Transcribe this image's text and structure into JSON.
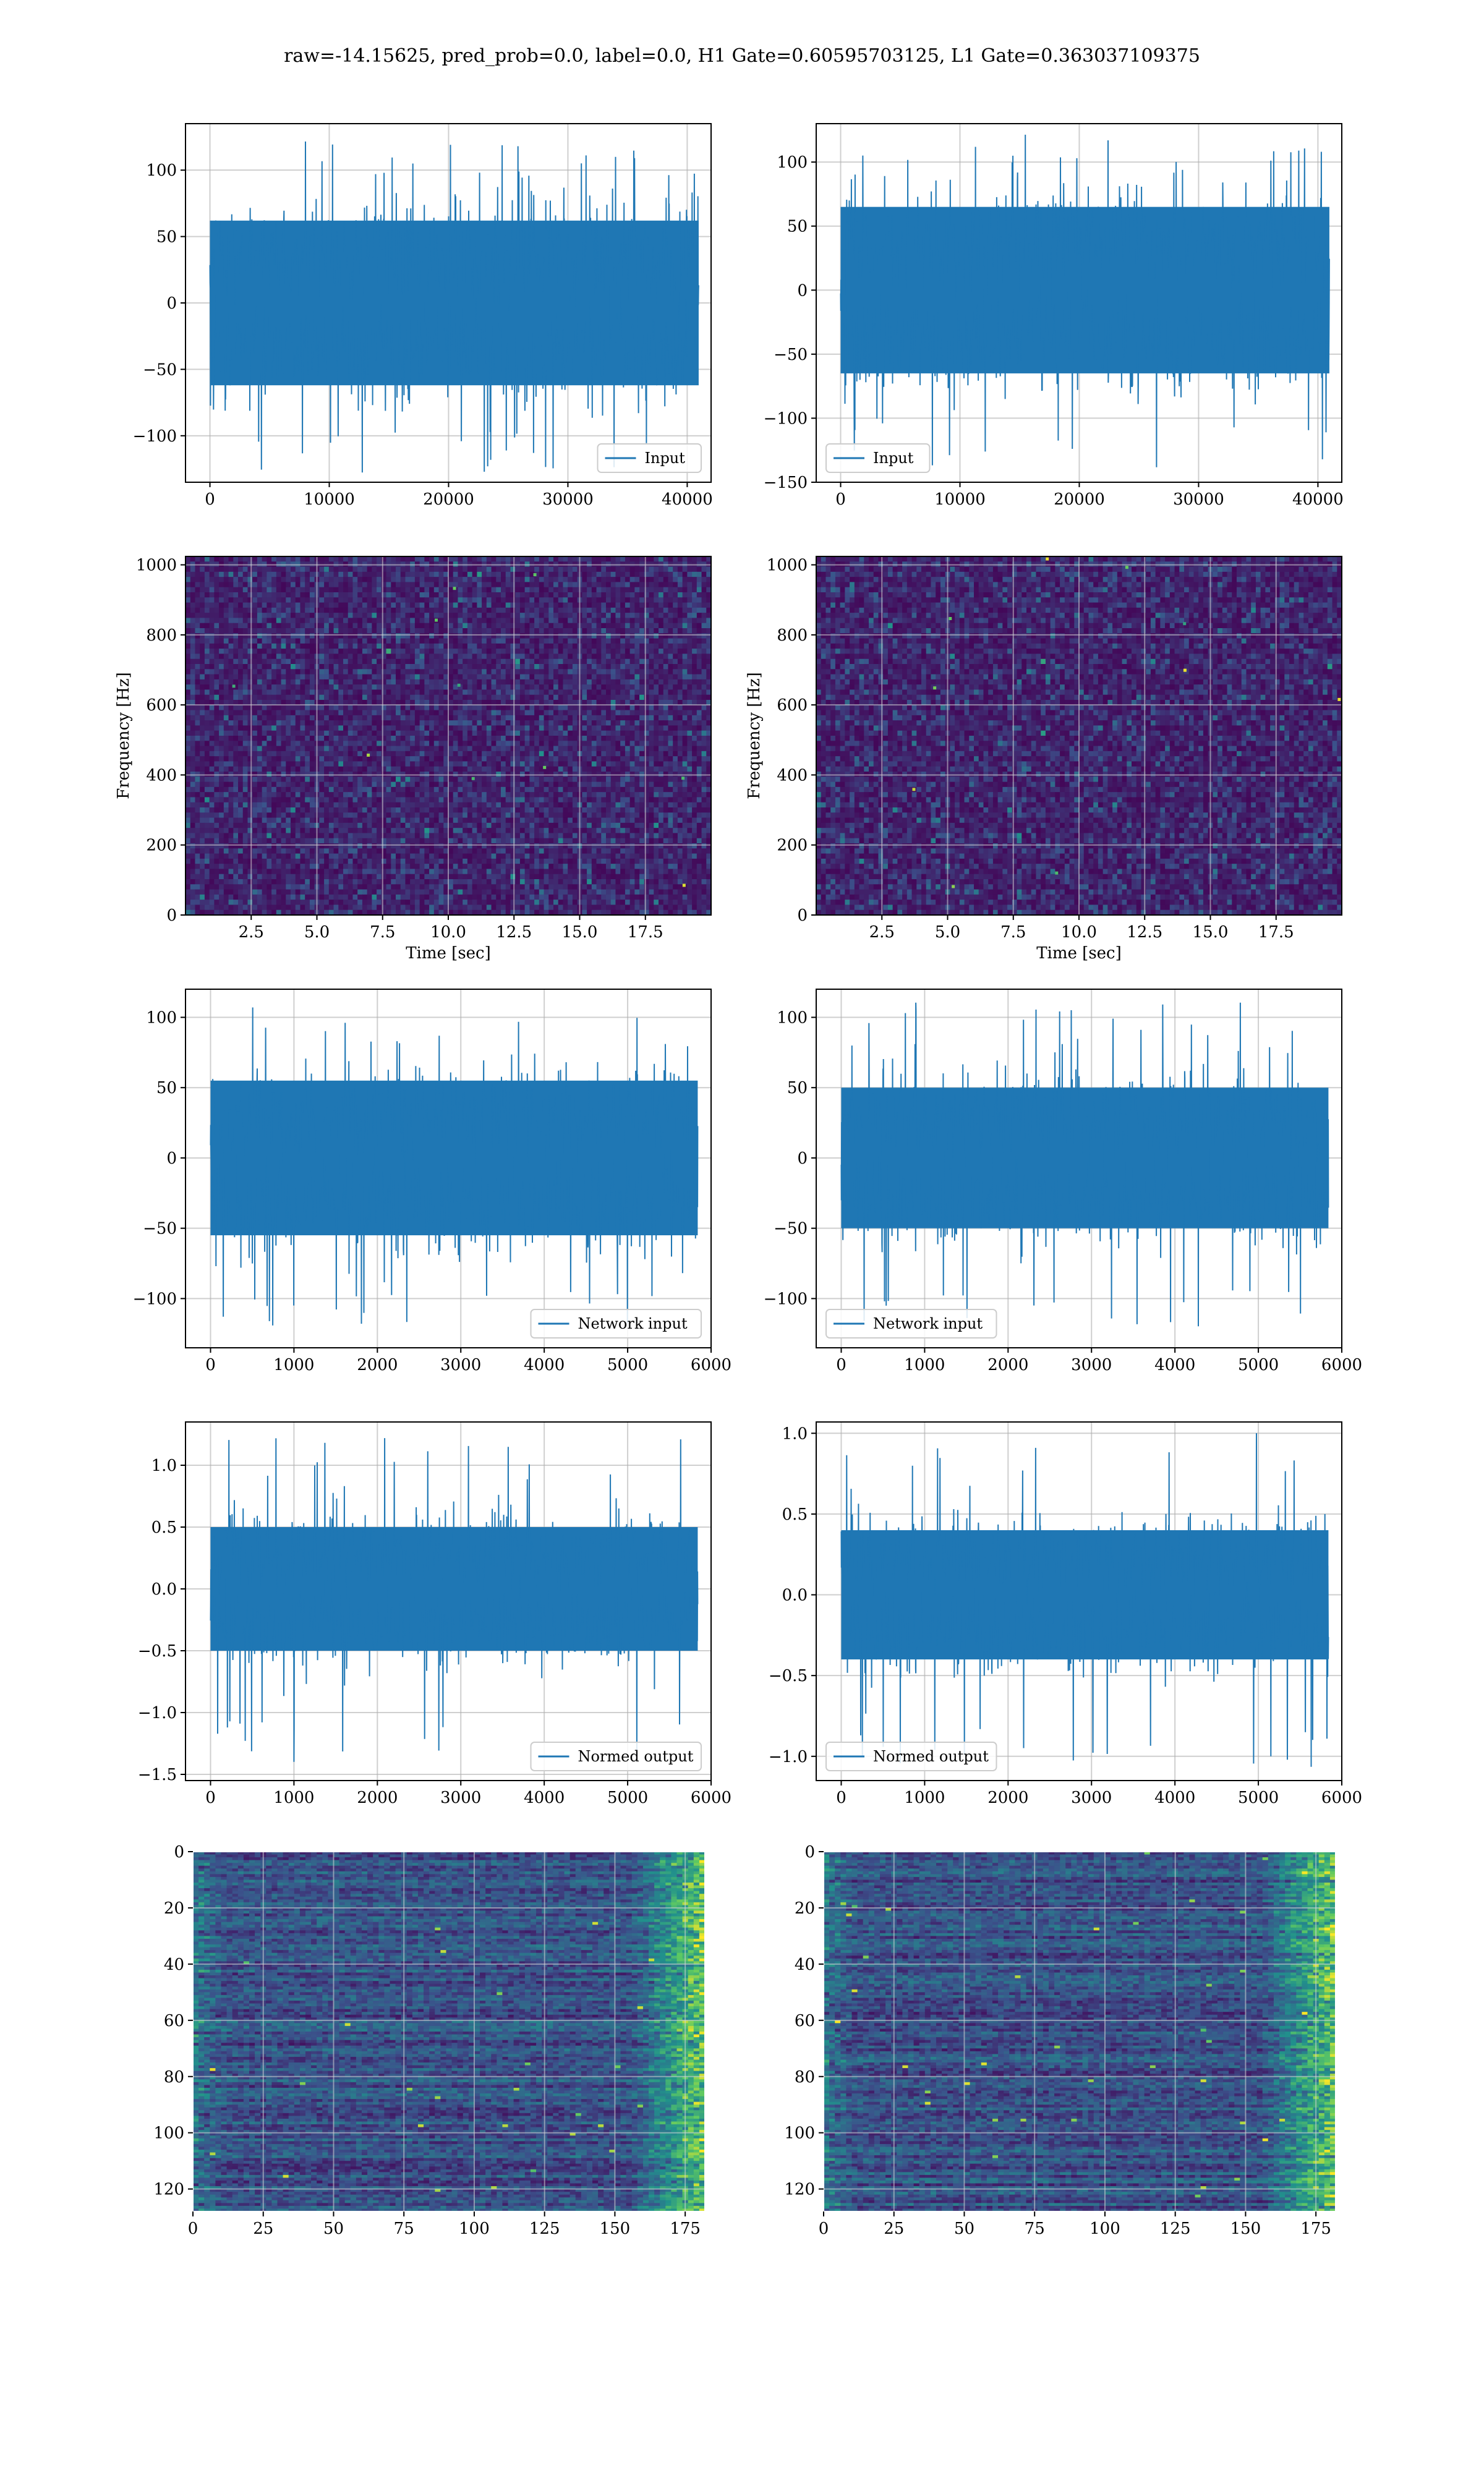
{
  "suptitle": "raw=-14.15625, pred_prob=0.0, label=0.0, H1 Gate=0.60595703125, L1 Gate=0.363037109375",
  "colors": {
    "series": "#1f77b4",
    "grid": "#b0b0b0",
    "spine": "#000000",
    "viridis_dark": "#440154",
    "viridis_mid": "#21918c",
    "viridis_light": "#fde725"
  },
  "chart_data": [
    {
      "id": "h1-input",
      "type": "line",
      "legend": "Input",
      "legend_loc": "lower right",
      "x_range": [
        0,
        40960
      ],
      "xlim": [
        -2048,
        42000
      ],
      "ylim": [
        -135,
        135
      ],
      "xticks": [
        0,
        10000,
        20000,
        30000,
        40000
      ],
      "xtick_labels": [
        "0",
        "10000",
        "20000",
        "30000",
        "40000"
      ],
      "yticks": [
        -100,
        -50,
        0,
        50,
        100
      ],
      "ytick_labels": [
        "−100",
        "−50",
        "0",
        "50",
        "100"
      ],
      "envelope": {
        "core": [
          -62,
          62
        ],
        "peak": [
          -128,
          122
        ]
      },
      "grid": true
    },
    {
      "id": "l1-input",
      "type": "line",
      "legend": "Input",
      "legend_loc": "lower left",
      "x_range": [
        0,
        40960
      ],
      "xlim": [
        -2048,
        42000
      ],
      "ylim": [
        -150,
        130
      ],
      "xticks": [
        0,
        10000,
        20000,
        30000,
        40000
      ],
      "xtick_labels": [
        "0",
        "10000",
        "20000",
        "30000",
        "40000"
      ],
      "yticks": [
        -150,
        -100,
        -50,
        0,
        50,
        100
      ],
      "ytick_labels": [
        "−150",
        "−100",
        "−50",
        "0",
        "50",
        "100"
      ],
      "envelope": {
        "core": [
          -65,
          65
        ],
        "peak": [
          -140,
          122
        ]
      },
      "grid": true
    },
    {
      "id": "h1-spec",
      "type": "heatmap",
      "colormap": "viridis",
      "xlabel": "Time [sec]",
      "ylabel": "Frequency [Hz]",
      "xlim": [
        0,
        20
      ],
      "ylim": [
        0,
        1024
      ],
      "xticks": [
        2.5,
        5.0,
        7.5,
        10.0,
        12.5,
        15.0,
        17.5
      ],
      "xtick_labels": [
        "2.5",
        "5.0",
        "7.5",
        "10.0",
        "12.5",
        "15.0",
        "17.5"
      ],
      "yticks": [
        0,
        200,
        400,
        600,
        800,
        1000
      ],
      "ytick_labels": [
        "0",
        "200",
        "400",
        "600",
        "800",
        "1000"
      ],
      "grid": true
    },
    {
      "id": "l1-spec",
      "type": "heatmap",
      "colormap": "viridis",
      "xlabel": "Time [sec]",
      "ylabel": "Frequency [Hz]",
      "xlim": [
        0,
        20
      ],
      "ylim": [
        0,
        1024
      ],
      "xticks": [
        2.5,
        5.0,
        7.5,
        10.0,
        12.5,
        15.0,
        17.5
      ],
      "xtick_labels": [
        "2.5",
        "5.0",
        "7.5",
        "10.0",
        "12.5",
        "15.0",
        "17.5"
      ],
      "yticks": [
        0,
        200,
        400,
        600,
        800,
        1000
      ],
      "ytick_labels": [
        "0",
        "200",
        "400",
        "600",
        "800",
        "1000"
      ],
      "grid": true
    },
    {
      "id": "h1-netin",
      "type": "line",
      "legend": "Network input",
      "legend_loc": "lower right",
      "x_range": [
        0,
        5840
      ],
      "xlim": [
        -300,
        6000
      ],
      "ylim": [
        -135,
        120
      ],
      "xticks": [
        0,
        1000,
        2000,
        3000,
        4000,
        5000,
        6000
      ],
      "xtick_labels": [
        "0",
        "1000",
        "2000",
        "3000",
        "4000",
        "5000",
        "6000"
      ],
      "yticks": [
        -100,
        -50,
        0,
        50,
        100
      ],
      "ytick_labels": [
        "−100",
        "−50",
        "0",
        "50",
        "100"
      ],
      "envelope": {
        "core": [
          -55,
          55
        ],
        "peak": [
          -125,
          108
        ]
      },
      "grid": true
    },
    {
      "id": "l1-netin",
      "type": "line",
      "legend": "Network input",
      "legend_loc": "lower left",
      "x_range": [
        0,
        5840
      ],
      "xlim": [
        -300,
        6000
      ],
      "ylim": [
        -135,
        120
      ],
      "xticks": [
        0,
        1000,
        2000,
        3000,
        4000,
        5000,
        6000
      ],
      "xtick_labels": [
        "0",
        "1000",
        "2000",
        "3000",
        "4000",
        "5000",
        "6000"
      ],
      "yticks": [
        -100,
        -50,
        0,
        50,
        100
      ],
      "ytick_labels": [
        "−100",
        "−50",
        "0",
        "50",
        "100"
      ],
      "envelope": {
        "core": [
          -50,
          50
        ],
        "peak": [
          -122,
          112
        ]
      },
      "grid": true
    },
    {
      "id": "h1-normed",
      "type": "line",
      "legend": "Normed output",
      "legend_loc": "lower right",
      "x_range": [
        0,
        5840
      ],
      "xlim": [
        -300,
        6000
      ],
      "ylim": [
        -1.55,
        1.35
      ],
      "xticks": [
        0,
        1000,
        2000,
        3000,
        4000,
        5000,
        6000
      ],
      "xtick_labels": [
        "0",
        "1000",
        "2000",
        "3000",
        "4000",
        "5000",
        "6000"
      ],
      "yticks": [
        -1.5,
        -1.0,
        -0.5,
        0.0,
        0.5,
        1.0
      ],
      "ytick_labels": [
        "−1.5",
        "−1.0",
        "−0.5",
        "0.0",
        "0.5",
        "1.0"
      ],
      "envelope": {
        "core": [
          -0.5,
          0.5
        ],
        "peak": [
          -1.42,
          1.22
        ]
      },
      "grid": true
    },
    {
      "id": "l1-normed",
      "type": "line",
      "legend": "Normed output",
      "legend_loc": "lower left",
      "x_range": [
        0,
        5840
      ],
      "xlim": [
        -300,
        6000
      ],
      "ylim": [
        -1.15,
        1.07
      ],
      "xticks": [
        0,
        1000,
        2000,
        3000,
        4000,
        5000,
        6000
      ],
      "xtick_labels": [
        "0",
        "1000",
        "2000",
        "3000",
        "4000",
        "5000",
        "6000"
      ],
      "yticks": [
        -1.0,
        -0.5,
        0.0,
        0.5,
        1.0
      ],
      "ytick_labels": [
        "−1.0",
        "−0.5",
        "0.0",
        "0.5",
        "1.0"
      ],
      "envelope": {
        "core": [
          -0.4,
          0.4
        ],
        "peak": [
          -1.1,
          1.02
        ]
      },
      "grid": true
    },
    {
      "id": "h1-features",
      "type": "heatmap",
      "colormap": "viridis",
      "origin": "upper",
      "rows": 128,
      "cols": 182,
      "xlim": [
        0,
        182
      ],
      "ylim": [
        128,
        0
      ],
      "xticks": [
        0,
        25,
        50,
        75,
        100,
        125,
        150,
        175
      ],
      "xtick_labels": [
        "0",
        "25",
        "50",
        "75",
        "100",
        "125",
        "150",
        "175"
      ],
      "yticks": [
        0,
        20,
        40,
        60,
        80,
        100,
        120
      ],
      "ytick_labels": [
        "0",
        "20",
        "40",
        "60",
        "80",
        "100",
        "120"
      ],
      "grid": true
    },
    {
      "id": "l1-features",
      "type": "heatmap",
      "colormap": "viridis",
      "origin": "upper",
      "rows": 128,
      "cols": 182,
      "xlim": [
        0,
        182
      ],
      "ylim": [
        128,
        0
      ],
      "xticks": [
        0,
        25,
        50,
        75,
        100,
        125,
        150,
        175
      ],
      "xtick_labels": [
        "0",
        "25",
        "50",
        "75",
        "100",
        "125",
        "150",
        "175"
      ],
      "yticks": [
        0,
        20,
        40,
        60,
        80,
        100,
        120
      ],
      "ytick_labels": [
        "0",
        "20",
        "40",
        "60",
        "80",
        "100",
        "120"
      ],
      "grid": true
    }
  ]
}
